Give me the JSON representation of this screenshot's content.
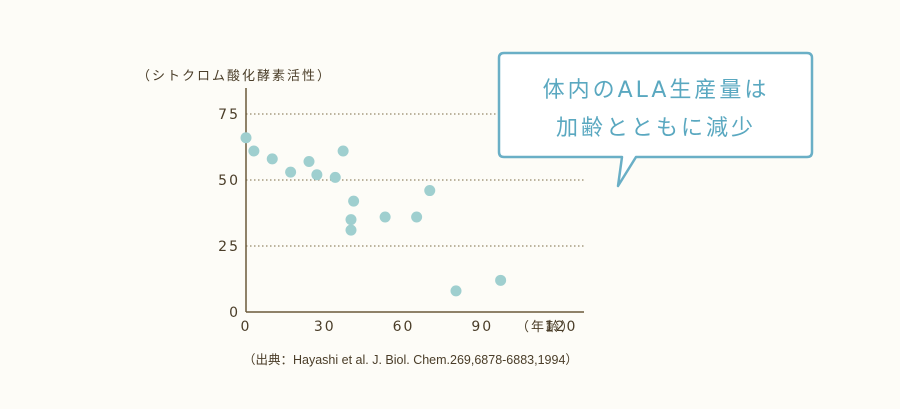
{
  "chart_data": {
    "type": "scatter",
    "ylabel": "（シトクロム酸化酵素活性）",
    "xlabel": "（年齢）",
    "xlim": [
      0,
      135
    ],
    "ylim": [
      0,
      75
    ],
    "x_ticks": [
      0,
      30,
      60,
      90,
      120
    ],
    "y_ticks": [
      0,
      25,
      50,
      75
    ],
    "grid": "horizontal dotted at 25, 50, 75",
    "point_color": "#9fcfcf",
    "points": [
      {
        "x": 0,
        "y": 66
      },
      {
        "x": 3,
        "y": 61
      },
      {
        "x": 10,
        "y": 58
      },
      {
        "x": 17,
        "y": 53
      },
      {
        "x": 24,
        "y": 57
      },
      {
        "x": 27,
        "y": 52
      },
      {
        "x": 34,
        "y": 51
      },
      {
        "x": 37,
        "y": 61
      },
      {
        "x": 41,
        "y": 42
      },
      {
        "x": 40,
        "y": 35
      },
      {
        "x": 40,
        "y": 31
      },
      {
        "x": 53,
        "y": 36
      },
      {
        "x": 65,
        "y": 36
      },
      {
        "x": 70,
        "y": 46
      },
      {
        "x": 80,
        "y": 8
      },
      {
        "x": 97,
        "y": 12
      }
    ]
  },
  "callout": {
    "line1": "体内のALA生産量は",
    "line2": "加齢とともに減少",
    "text_color": "#5aa8c0",
    "border_color": "#6aafc6"
  },
  "source": "（出典：Hayashi et al. J. Biol. Chem.269,6878-6883,1994）",
  "colors": {
    "axis": "#6b5a3a",
    "text": "#4a3d28",
    "background": "#fdfcf7"
  }
}
